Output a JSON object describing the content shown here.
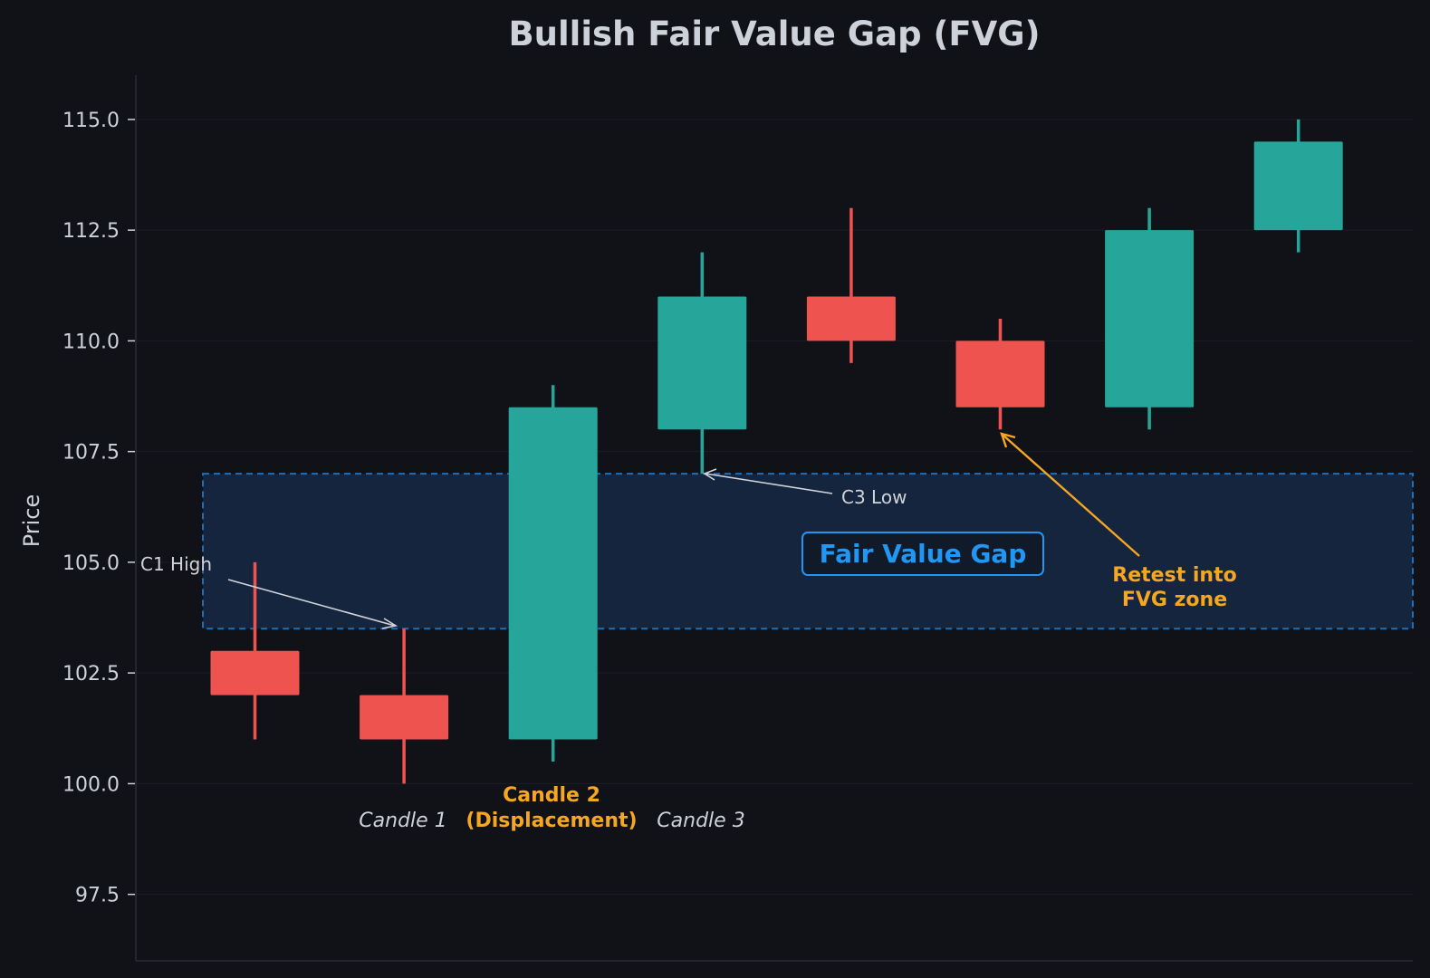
{
  "chart_data": {
    "type": "candlestick",
    "title": "Bullish Fair Value Gap (FVG)",
    "ylabel": "Price",
    "xlabel": "",
    "ylim": [
      96,
      116
    ],
    "yticks": [
      "97.5",
      "100.0",
      "102.5",
      "105.0",
      "107.5",
      "110.0",
      "112.5",
      "115.0"
    ],
    "grid": "horizontal",
    "candles": [
      {
        "x": 1,
        "open": 103.0,
        "close": 102.0,
        "high": 105.0,
        "low": 101.0
      },
      {
        "x": 2,
        "open": 102.0,
        "close": 101.0,
        "high": 103.5,
        "low": 100.0
      },
      {
        "x": 3,
        "open": 101.0,
        "close": 108.5,
        "high": 109.0,
        "low": 100.5
      },
      {
        "x": 4,
        "open": 108.0,
        "close": 111.0,
        "high": 112.0,
        "low": 107.0
      },
      {
        "x": 5,
        "open": 111.0,
        "close": 110.0,
        "high": 113.0,
        "low": 109.5
      },
      {
        "x": 6,
        "open": 110.0,
        "close": 108.5,
        "high": 110.5,
        "low": 108.0
      },
      {
        "x": 7,
        "open": 108.5,
        "close": 112.5,
        "high": 113.0,
        "low": 108.0
      },
      {
        "x": 8,
        "open": 112.5,
        "close": 114.5,
        "high": 115.0,
        "low": 112.0
      }
    ],
    "fvg_zone": {
      "low": 103.5,
      "high": 107.0,
      "label": "Fair Value Gap"
    },
    "annotations": {
      "c1_high": "C1 High",
      "c3_low": "C3 Low",
      "retest_line1": "Retest into",
      "retest_line2": "FVG zone"
    },
    "candle_labels": {
      "candle1": "Candle 1",
      "candle2_line1": "Candle 2",
      "candle2_line2": "(Displacement)",
      "candle3": "Candle 3"
    },
    "colors": {
      "background": "#111217",
      "bullish": "#26a69a",
      "bearish": "#ef5350",
      "fvg_fill": "#15253d",
      "fvg_border": "#1f6fb8",
      "fvg_text": "#2196f3",
      "highlight": "#f5a623",
      "text": "#cdd1d9"
    }
  }
}
